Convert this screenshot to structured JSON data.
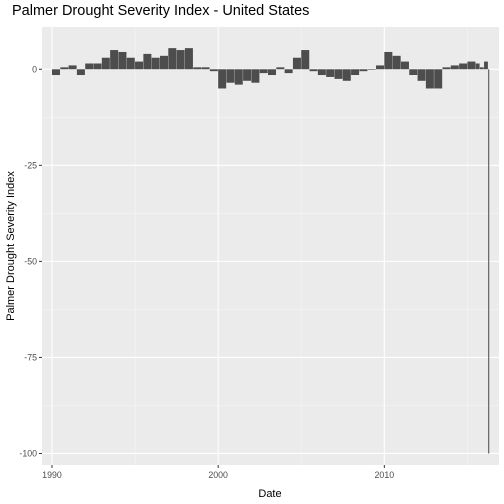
{
  "chart_data": {
    "type": "bar",
    "title": "Palmer Drought Severity Index - United States",
    "xlabel": "Date",
    "ylabel": "Palmer Drought Severity Index",
    "x_range": [
      1989.4,
      2016.9
    ],
    "ylim": [
      -103,
      11
    ],
    "x_ticks": [
      {
        "value": 1990,
        "label": "1990"
      },
      {
        "value": 2000,
        "label": "2000"
      },
      {
        "value": 2010,
        "label": "2010"
      }
    ],
    "y_ticks": [
      {
        "value": 0,
        "label": "0"
      },
      {
        "value": -25,
        "label": "-25"
      },
      {
        "value": -50,
        "label": "-50"
      },
      {
        "value": -75,
        "label": "-75"
      },
      {
        "value": -100,
        "label": "-100"
      }
    ],
    "bar_color": "#4d4d4d",
    "background_color": "#ebebeb",
    "grid": true,
    "series": [
      {
        "dates": [
          "1990-01",
          "1990-07",
          "1991-01",
          "1991-07",
          "1992-01",
          "1992-07",
          "1993-01",
          "1993-07",
          "1994-01",
          "1994-07",
          "1995-01",
          "1995-07",
          "1996-01",
          "1996-07",
          "1997-01",
          "1997-07",
          "1998-01",
          "1998-07",
          "1999-01",
          "1999-07",
          "2000-01",
          "2000-07",
          "2001-01",
          "2001-07",
          "2002-01",
          "2002-07",
          "2003-01",
          "2003-07",
          "2004-01",
          "2004-07",
          "2005-01",
          "2005-07",
          "2006-01",
          "2006-07",
          "2007-01",
          "2007-07",
          "2008-01",
          "2008-07",
          "2009-01",
          "2009-07",
          "2010-01",
          "2010-07",
          "2011-01",
          "2011-07",
          "2012-01",
          "2012-07",
          "2013-01",
          "2013-07",
          "2014-01",
          "2014-07",
          "2015-01",
          "2015-07",
          "2015-10",
          "2016-01",
          "2016-04"
        ],
        "values": [
          -1.5,
          0.5,
          1.0,
          -1.5,
          1.5,
          1.5,
          3.0,
          5.0,
          4.5,
          3.0,
          2.0,
          4.0,
          3.0,
          3.5,
          5.5,
          5.0,
          5.5,
          0.5,
          0.5,
          -0.5,
          -5.0,
          -3.5,
          -4.0,
          -3.0,
          -3.5,
          -1.0,
          -1.5,
          0.5,
          -1.0,
          3.0,
          5.0,
          -0.5,
          -1.5,
          -2.0,
          -2.5,
          -3.0,
          -1.5,
          -0.5,
          0.0,
          1.0,
          4.5,
          3.5,
          2.0,
          -1.5,
          -3.0,
          -5.0,
          -5.0,
          0.5,
          1.0,
          1.5,
          2.0,
          1.5,
          0.5,
          2.0,
          -100.0
        ]
      }
    ]
  }
}
